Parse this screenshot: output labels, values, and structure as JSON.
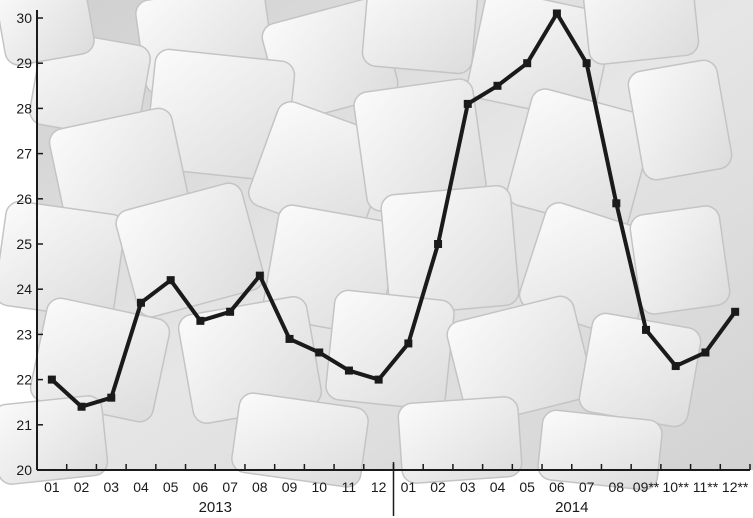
{
  "chart_data": {
    "type": "line",
    "title": "",
    "xlabel": "",
    "ylabel": "",
    "ylim": [
      20,
      30
    ],
    "y_ticks": [
      "20",
      "21",
      "22",
      "23",
      "24",
      "25",
      "26",
      "27",
      "28",
      "29",
      "30"
    ],
    "categories": [
      "01",
      "02",
      "03",
      "04",
      "05",
      "06",
      "07",
      "08",
      "09",
      "10",
      "11",
      "12",
      "01",
      "02",
      "03",
      "04",
      "05",
      "06",
      "07",
      "08",
      "09**",
      "10**",
      "11**",
      "12**"
    ],
    "year_groups": [
      {
        "label": "2013",
        "months": 12
      },
      {
        "label": "2014",
        "months": 12
      }
    ],
    "series": [
      {
        "values": [
          22.0,
          21.4,
          21.6,
          23.7,
          24.2,
          23.3,
          23.5,
          24.3,
          22.9,
          22.6,
          22.2,
          22.0,
          22.8,
          25.0,
          28.1,
          28.5,
          29.0,
          30.1,
          29.0,
          25.9,
          23.1,
          22.3,
          22.6,
          23.5
        ]
      }
    ],
    "grid": false,
    "legend": "none",
    "line_color": "#1a1a1a",
    "background": "sugar cubes photo"
  }
}
